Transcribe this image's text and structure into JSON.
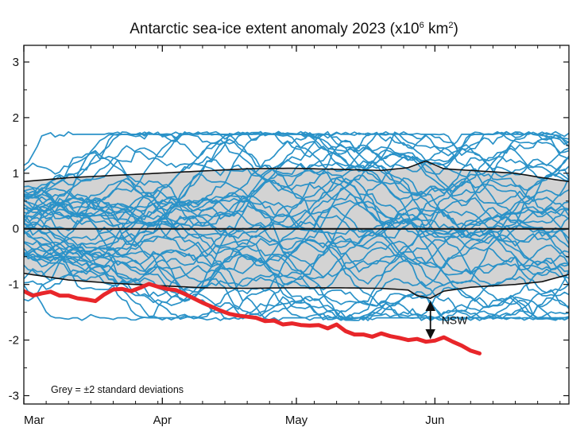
{
  "chart_data": {
    "type": "line",
    "title": "Antarctic sea-ice extent anomaly 2023 (x10",
    "title_superscript": "6",
    "title_unit_tail": " km",
    "title_unit_superscript": "2",
    "title_close": ")",
    "xlabel": "",
    "ylabel": "",
    "x_months": [
      "Mar",
      "Apr",
      "May",
      "Jun"
    ],
    "x_month_days": [
      0,
      31,
      61,
      92
    ],
    "xlim": [
      0,
      122
    ],
    "ylim": [
      -3.15,
      3.3
    ],
    "y_ticks": [
      -3,
      -2,
      -1,
      0,
      1,
      2,
      3
    ],
    "y_tick_labels": [
      "-3",
      "-2",
      "-1",
      "0",
      "1",
      "2",
      "3"
    ],
    "band_upper": {
      "day": [
        0,
        10,
        20,
        30,
        40,
        50,
        60,
        70,
        80,
        86,
        90,
        94,
        100,
        110,
        116,
        122
      ],
      "value": [
        0.85,
        0.92,
        0.96,
        1.0,
        1.04,
        1.08,
        1.09,
        1.07,
        1.05,
        1.1,
        1.22,
        1.08,
        1.05,
        1.0,
        0.92,
        0.85
      ]
    },
    "band_lower": {
      "day": [
        0,
        10,
        20,
        30,
        40,
        50,
        60,
        70,
        80,
        86,
        88,
        91,
        94,
        100,
        110,
        116,
        122
      ],
      "value": [
        -0.8,
        -0.92,
        -0.98,
        -1.02,
        -1.06,
        -1.07,
        -1.06,
        -1.06,
        -1.07,
        -1.1,
        -1.2,
        -1.25,
        -1.12,
        -1.05,
        -1.0,
        -0.95,
        -0.82
      ]
    },
    "band_label": "Grey = ±2 standard deviations",
    "climatology_day_count": 123,
    "series_2023": {
      "name": "2023",
      "color": "#e8262a",
      "day": [
        0,
        2,
        4,
        6,
        8,
        10,
        12,
        14,
        16,
        18,
        20,
        22,
        24,
        26,
        28,
        30,
        32,
        34,
        36,
        38,
        40,
        42,
        44,
        46,
        48,
        50,
        52,
        54,
        56,
        58,
        60,
        62,
        64,
        66,
        68,
        70,
        72,
        74,
        76,
        78,
        80,
        82,
        84,
        86,
        88,
        90,
        92,
        94,
        96,
        98,
        100,
        102
      ],
      "value": [
        -1.12,
        -1.2,
        -1.16,
        -1.13,
        -1.2,
        -1.2,
        -1.25,
        -1.27,
        -1.3,
        -1.18,
        -1.09,
        -1.08,
        -1.12,
        -1.06,
        -0.99,
        -1.04,
        -1.08,
        -1.1,
        -1.17,
        -1.25,
        -1.33,
        -1.4,
        -1.47,
        -1.53,
        -1.56,
        -1.58,
        -1.6,
        -1.66,
        -1.65,
        -1.72,
        -1.7,
        -1.73,
        -1.74,
        -1.73,
        -1.79,
        -1.72,
        -1.84,
        -1.9,
        -1.9,
        -1.94,
        -1.88,
        -1.93,
        -1.96,
        -2.0,
        -1.98,
        -2.03,
        -2.01,
        -1.95,
        -2.03,
        -2.1,
        -2.19,
        -2.24
      ]
    },
    "other_years_color": "#2a92c8",
    "annotation": {
      "label": "NSW",
      "day": 91,
      "y_top": -1.3,
      "y_bottom": -1.98
    }
  }
}
